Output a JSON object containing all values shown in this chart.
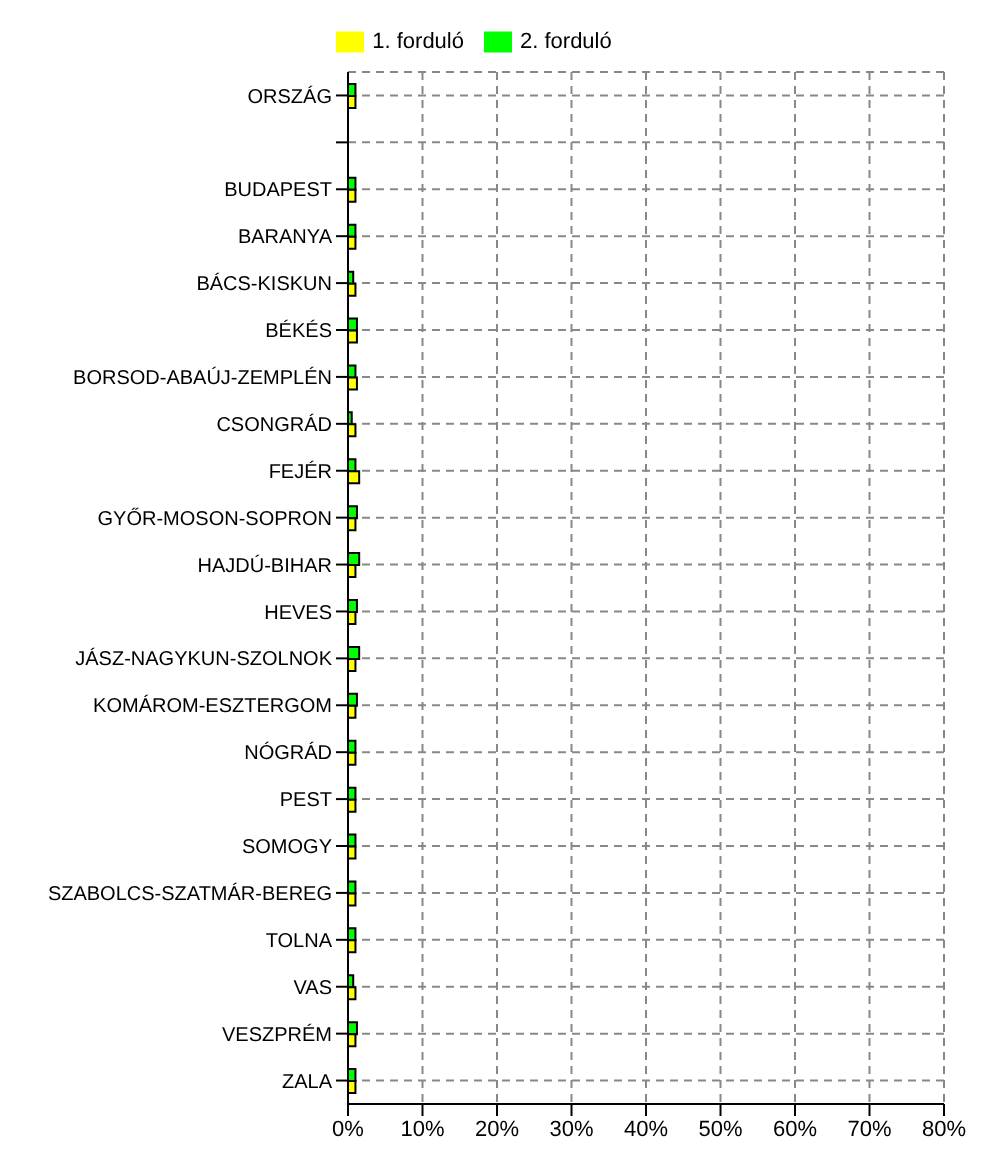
{
  "chart_data": {
    "type": "bar",
    "orientation": "horizontal",
    "categories": [
      "ORSZÁG",
      null,
      "BUDAPEST",
      "BARANYA",
      "BÁCS-KISKUN",
      "BÉKÉS",
      "BORSOD-ABAÚJ-ZEMPLÉN",
      "CSONGRÁD",
      "FEJÉR",
      "GYŐR-MOSON-SOPRON",
      "HAJDÚ-BIHAR",
      "HEVES",
      "JÁSZ-NAGYKUN-SZOLNOK",
      "KOMÁROM-ESZTERGOM",
      "NÓGRÁD",
      "PEST",
      "SOMOGY",
      "SZABOLCS-SZATMÁR-BEREG",
      "TOLNA",
      "VAS",
      "VESZPRÉM",
      "ZALA"
    ],
    "series": [
      {
        "name": "2. forduló",
        "color": "#00ff00",
        "values": [
          1,
          null,
          1,
          1,
          0.7,
          1.2,
          1,
          0.5,
          1,
          1.2,
          1.5,
          1.2,
          1.5,
          1.2,
          1,
          1,
          1,
          1,
          1,
          0.7,
          1.2,
          1
        ]
      },
      {
        "name": "1. forduló",
        "color": "#ffff00",
        "values": [
          1,
          null,
          1,
          1,
          1,
          1.2,
          1.2,
          1,
          1.5,
          1,
          1,
          1,
          1,
          1,
          1,
          1,
          1,
          1,
          1,
          1,
          1,
          1
        ]
      }
    ],
    "xlim": [
      0,
      80
    ],
    "xticks": [
      {
        "value": 0,
        "label": "0%"
      },
      {
        "value": 10,
        "label": "10%"
      },
      {
        "value": 20,
        "label": "20%"
      },
      {
        "value": 30,
        "label": "30%"
      },
      {
        "value": 40,
        "label": "40%"
      },
      {
        "value": 50,
        "label": "50%"
      },
      {
        "value": 60,
        "label": "60%"
      },
      {
        "value": 70,
        "label": "70%"
      },
      {
        "value": 80,
        "label": "80%"
      }
    ],
    "grid": true,
    "legend": "top"
  }
}
